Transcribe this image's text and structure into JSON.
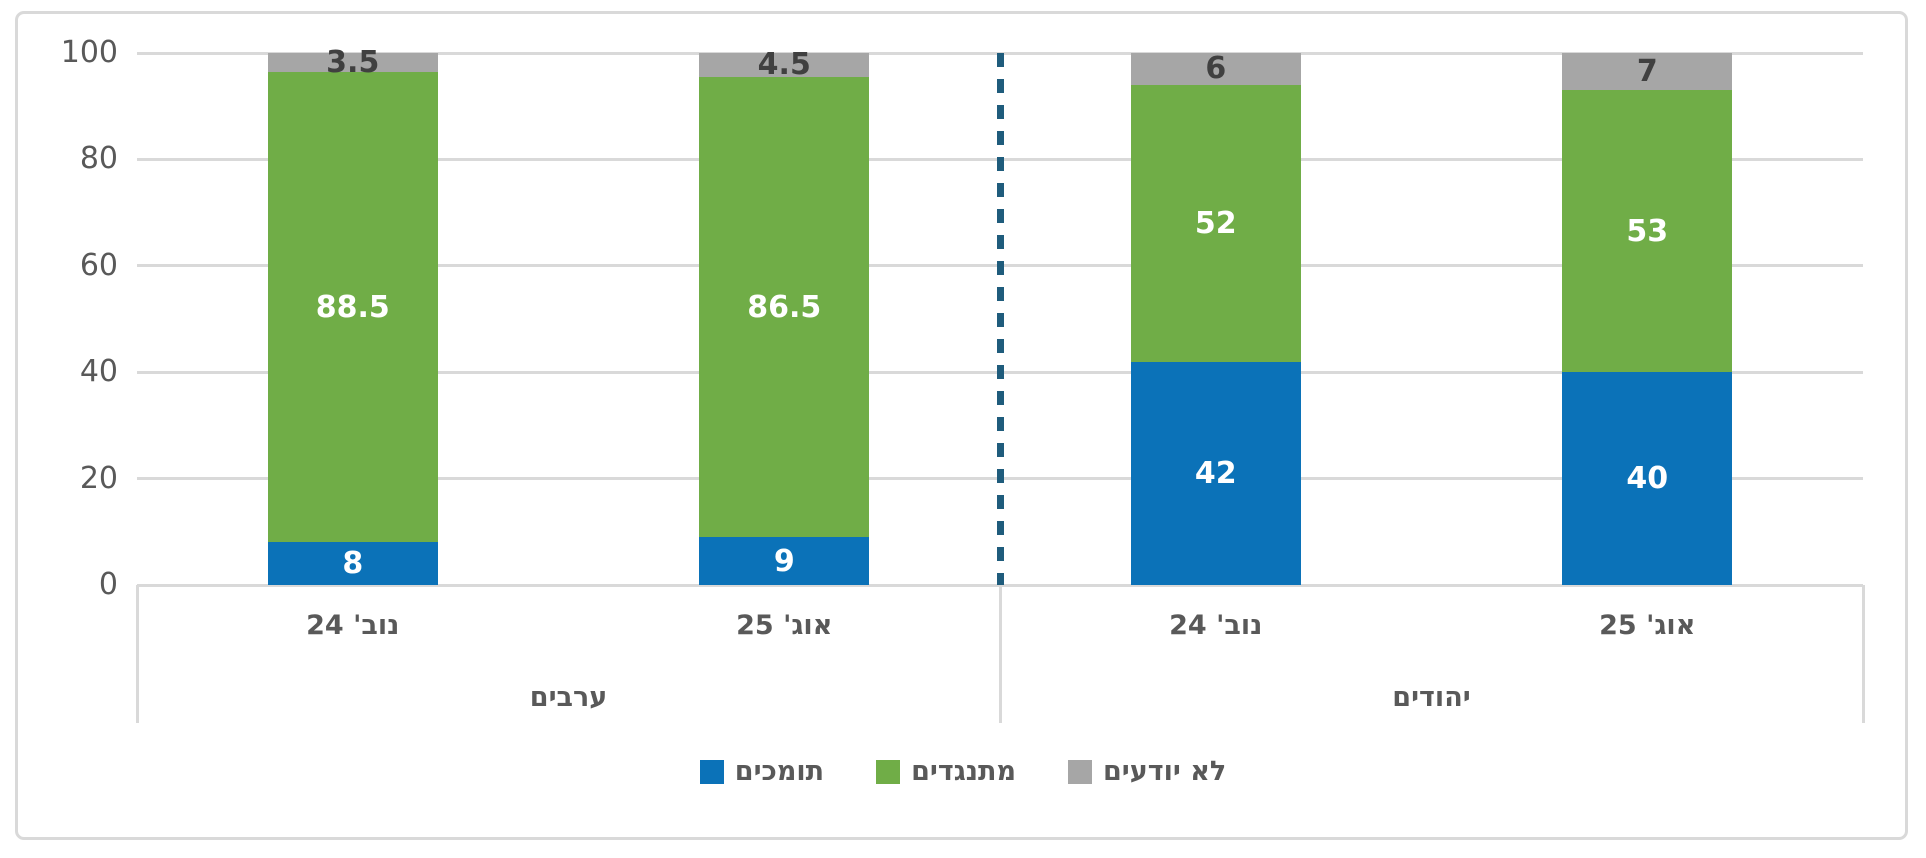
{
  "chart_data": {
    "type": "bar",
    "variant": "stacked-column",
    "title": "",
    "y_axis": {
      "range": [
        0,
        100
      ],
      "ticks": [
        0,
        20,
        40,
        60,
        80,
        100
      ],
      "grid": true
    },
    "series": [
      {
        "key": "supporters",
        "name": "תומכים",
        "color": "#0B72B8",
        "label_color": "#FFFFFF"
      },
      {
        "key": "opposers",
        "name": "מתנגדים",
        "color": "#70AD47",
        "label_color": "#FFFFFF"
      },
      {
        "key": "dont-know",
        "name": "לא יודעים",
        "color": "#A6A6A6",
        "label_color": "#404040"
      }
    ],
    "groups": [
      {
        "key": "arabs",
        "label": "ערבים",
        "categories": [
          "נוב' 24",
          "אוג' 25"
        ],
        "values": [
          [
            8,
            88.5,
            3.5
          ],
          [
            9,
            86.5,
            4.5
          ]
        ]
      },
      {
        "key": "jews",
        "label": "יהודים",
        "categories": [
          "נוב' 24",
          "אוג' 25"
        ],
        "values": [
          [
            42,
            52,
            6
          ],
          [
            40,
            53,
            7
          ]
        ]
      }
    ],
    "separator_line": {
      "style": "dashed",
      "color": "#1F5C7C",
      "position": "between-groups"
    },
    "legend": {
      "position": "bottom",
      "entries": [
        "תומכים",
        "מתנגדים",
        "לא יודעים"
      ]
    }
  },
  "colors": {
    "grid": "#D9D9D9",
    "frame": "#D9D9D9",
    "axis_text": "#595959",
    "background": "#FFFFFF"
  }
}
